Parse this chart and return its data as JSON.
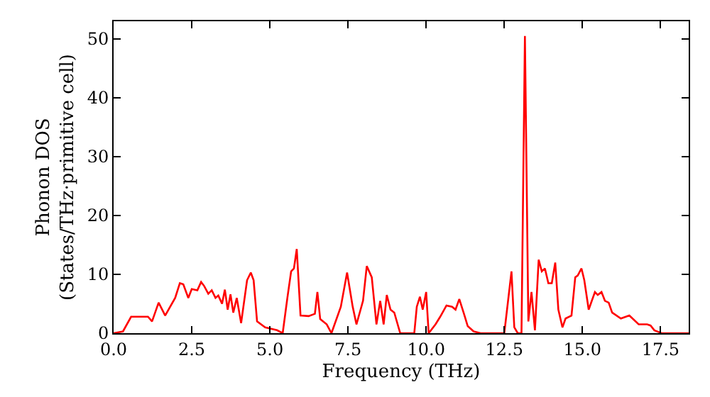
{
  "chart_data": {
    "type": "line",
    "xlabel": "Frequency (THz)",
    "ylabel": "Phonon DOS\n(States/THz·primitive cell)",
    "xlim": [
      0,
      18.4
    ],
    "ylim": [
      0,
      53
    ],
    "xticks": [
      {
        "value": 0,
        "label": "0.0"
      },
      {
        "value": 2.5,
        "label": "2.5"
      },
      {
        "value": 5,
        "label": "5.0"
      },
      {
        "value": 7.5,
        "label": "7.5"
      },
      {
        "value": 10,
        "label": "10.0"
      },
      {
        "value": 12.5,
        "label": "12.5"
      },
      {
        "value": 15,
        "label": "15.0"
      },
      {
        "value": 17.5,
        "label": "17.5"
      }
    ],
    "yticks": [
      0,
      10,
      20,
      30,
      40,
      50
    ],
    "marker": "none",
    "line_style": "solid",
    "series": [
      {
        "color": "#ff0000",
        "x": [
          0,
          0.3,
          0.56,
          1.1,
          1.23,
          1.44,
          1.65,
          1.97,
          2.12,
          2.23,
          2.39,
          2.5,
          2.68,
          2.8,
          2.9,
          3.03,
          3.14,
          3.26,
          3.35,
          3.47,
          3.56,
          3.65,
          3.74,
          3.83,
          3.94,
          4.08,
          4.27,
          4.39,
          4.48,
          4.59,
          4.85,
          5.23,
          5.41,
          5.56,
          5.68,
          5.77,
          5.86,
          5.98,
          6.24,
          6.44,
          6.52,
          6.61,
          6.82,
          6.97,
          7.27,
          7.47,
          7.65,
          7.77,
          7.98,
          8.1,
          8.26,
          8.41,
          8.53,
          8.64,
          8.74,
          8.86,
          8.98,
          9.17,
          9.62,
          9.7,
          9.8,
          9.89,
          10.0,
          10.08,
          10.3,
          10.45,
          10.65,
          10.83,
          10.94,
          11.06,
          11.21,
          11.33,
          11.52,
          11.74,
          12.5,
          12.73,
          12.82,
          12.93,
          13.05,
          13.16,
          13.27,
          13.37,
          13.48,
          13.6,
          13.7,
          13.8,
          13.91,
          14.02,
          14.13,
          14.23,
          14.36,
          14.46,
          14.65,
          14.77,
          14.85,
          14.97,
          15.06,
          15.2,
          15.4,
          15.49,
          15.61,
          15.72,
          15.84,
          15.95,
          16.23,
          16.5,
          16.8,
          17.07,
          17.18,
          17.3,
          17.53,
          18.4
        ],
        "values": [
          0,
          0.3,
          2.8,
          2.8,
          2,
          5.2,
          3,
          6,
          8.5,
          8.3,
          6,
          7.5,
          7.3,
          8.7,
          8,
          6.7,
          7.3,
          6,
          6.4,
          5,
          7.4,
          4,
          6.6,
          3.5,
          6,
          1.7,
          9,
          10.3,
          9,
          2,
          1,
          0.5,
          0,
          6,
          10.5,
          11,
          14.3,
          3,
          2.9,
          3.3,
          7,
          2.4,
          1.5,
          0,
          4.5,
          10.3,
          4.5,
          1.5,
          5.5,
          11.4,
          9.5,
          1.5,
          5.5,
          1.5,
          6.5,
          4,
          3.5,
          0,
          0,
          4.5,
          6.2,
          4,
          7,
          0,
          1.5,
          2.8,
          4.7,
          4.5,
          4,
          5.8,
          3.3,
          1.2,
          0.3,
          0,
          0,
          10.5,
          1,
          0,
          0,
          50.5,
          2,
          7,
          0.5,
          12.5,
          10.5,
          11,
          8.5,
          8.5,
          12,
          4,
          1,
          2.5,
          3,
          9.5,
          9.8,
          11,
          9,
          4,
          7,
          6.5,
          7,
          5.5,
          5.2,
          3.5,
          2.5,
          3,
          1.5,
          1.5,
          1.3,
          0.5,
          0,
          0
        ]
      }
    ]
  }
}
